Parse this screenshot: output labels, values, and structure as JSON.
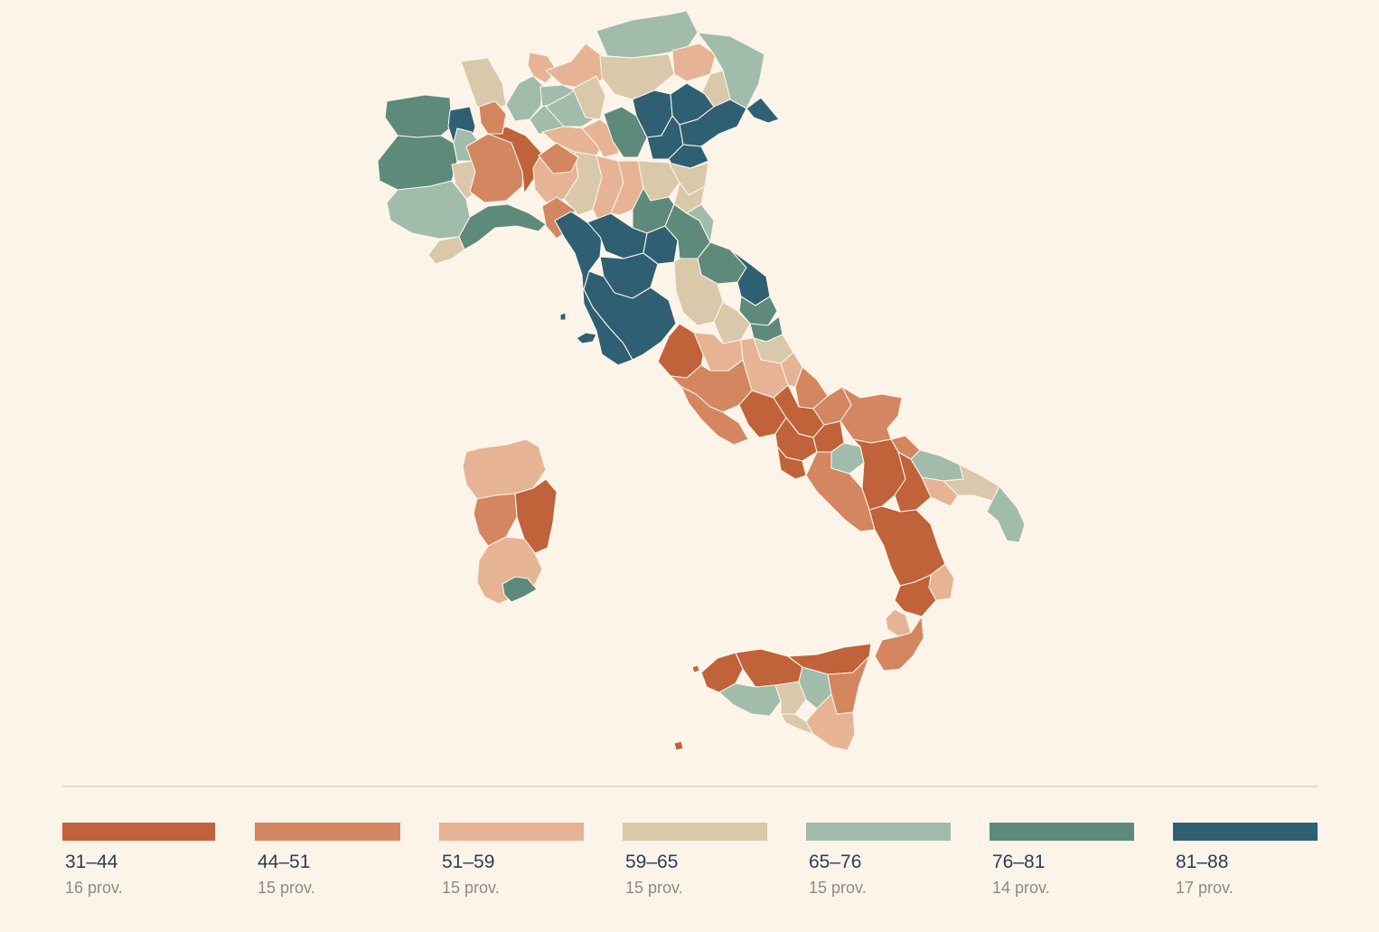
{
  "map": {
    "palette": {
      "c1": "#c0623a",
      "c2": "#d3865f",
      "c3": "#e6b394",
      "c4": "#d9c8a9",
      "c5": "#a1bcab",
      "c6": "#5d8a7b",
      "c7": "#2f5f72"
    }
  },
  "legend": {
    "items": [
      {
        "range": "31–44",
        "count": "16 prov.",
        "color": "#c0623a"
      },
      {
        "range": "44–51",
        "count": "15 prov.",
        "color": "#d3865f"
      },
      {
        "range": "51–59",
        "count": "15 prov.",
        "color": "#e6b394"
      },
      {
        "range": "59–65",
        "count": "15 prov.",
        "color": "#d9c8a9"
      },
      {
        "range": "65–76",
        "count": "15 prov.",
        "color": "#a1bcab"
      },
      {
        "range": "76–81",
        "count": "14 prov.",
        "color": "#5d8a7b"
      },
      {
        "range": "81–88",
        "count": "17 prov.",
        "color": "#2f5f72"
      }
    ]
  }
}
